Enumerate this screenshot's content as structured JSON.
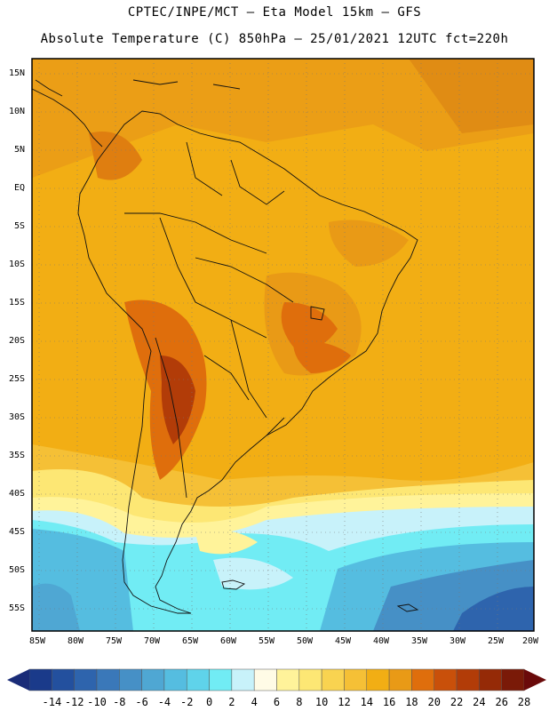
{
  "header": {
    "line1": "CPTEC/INPE/MCT –  Eta Model 15km – GFS",
    "line2": "Absolute Temperature (C) 850hPa – 25/01/2021 12UTC fct=220h"
  },
  "map": {
    "lat_labels": [
      "15N",
      "10N",
      "5N",
      "EQ",
      "5S",
      "10S",
      "15S",
      "20S",
      "25S",
      "30S",
      "35S",
      "40S",
      "45S",
      "50S",
      "55S"
    ],
    "lon_labels": [
      "85W",
      "80W",
      "75W",
      "70W",
      "65W",
      "60W",
      "55W",
      "50W",
      "45W",
      "40W",
      "35W",
      "30W",
      "25W",
      "20W"
    ]
  },
  "colorbar": {
    "labels": [
      "-14",
      "-12",
      "-10",
      "-8",
      "-6",
      "-4",
      "-2",
      "0",
      "2",
      "4",
      "6",
      "8",
      "10",
      "12",
      "14",
      "16",
      "18",
      "20",
      "22",
      "24",
      "26",
      "28"
    ],
    "colors": [
      "#1a3a8a",
      "#23509e",
      "#2e64ad",
      "#3a78b9",
      "#4690c6",
      "#4fa7d3",
      "#55bde0",
      "#5fd3ea",
      "#71ecf4",
      "#c8f2fa",
      "#fffbe6",
      "#fff39a",
      "#fde774",
      "#f9d350",
      "#f5c036",
      "#f2ae14",
      "#e99a16",
      "#df6e0c",
      "#c9500a",
      "#b23c08",
      "#952a07",
      "#7a1a08"
    ],
    "left_arrow_color": "#1a2c78",
    "right_arrow_color": "#6a0a0a"
  }
}
